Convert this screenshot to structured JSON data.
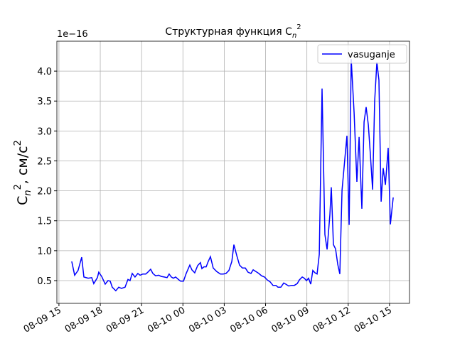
{
  "chart_data": {
    "type": "line",
    "title": {
      "text": "Структурная функция C",
      "sub": "n",
      "sup": "2"
    },
    "y_label": {
      "base": "C",
      "sub": "n",
      "sup": "2",
      "unit": ", см/с",
      "unit_sup": "2"
    },
    "offset_text": "1e−16",
    "grid": true,
    "legend": "upper right",
    "xlim": [
      14.85,
      40.45
    ],
    "ylim": [
      0.12,
      4.5
    ],
    "xticks": [
      {
        "value": 15,
        "label": "08-09 15"
      },
      {
        "value": 18,
        "label": "08-09 18"
      },
      {
        "value": 21,
        "label": "08-09 21"
      },
      {
        "value": 24,
        "label": "08-10 00"
      },
      {
        "value": 27,
        "label": "08-10 03"
      },
      {
        "value": 30,
        "label": "08-10 06"
      },
      {
        "value": 33,
        "label": "08-10 09"
      },
      {
        "value": 36,
        "label": "08-10 12"
      },
      {
        "value": 39,
        "label": "08-10 15"
      }
    ],
    "yticks": [
      0.5,
      {
        "value": 1.0,
        "label": "1.0"
      },
      1.5,
      {
        "value": 2.0,
        "label": "2.0"
      },
      2.5,
      {
        "value": 3.0,
        "label": "3.0"
      },
      3.5,
      {
        "value": 4.0,
        "label": "4.0"
      }
    ],
    "x": [
      15.93,
      16.14,
      16.39,
      16.65,
      16.81,
      17.12,
      17.38,
      17.53,
      17.79,
      17.89,
      18.1,
      18.36,
      18.56,
      18.72,
      18.87,
      19.13,
      19.34,
      19.54,
      19.8,
      20.01,
      20.16,
      20.32,
      20.52,
      20.73,
      20.89,
      21.09,
      21.3,
      21.45,
      21.66,
      21.82,
      22.02,
      22.23,
      22.43,
      22.64,
      22.85,
      23.0,
      23.16,
      23.31,
      23.47,
      23.67,
      23.83,
      24.04,
      24.24,
      24.5,
      24.65,
      24.86,
      25.07,
      25.27,
      25.38,
      25.53,
      25.69,
      25.84,
      26.0,
      26.2,
      26.46,
      26.72,
      26.93,
      27.13,
      27.34,
      27.55,
      27.7,
      27.91,
      28.11,
      28.32,
      28.53,
      28.73,
      28.94,
      29.1,
      29.3,
      29.51,
      29.71,
      29.92,
      30.13,
      30.33,
      30.54,
      30.75,
      30.9,
      31.11,
      31.32,
      31.47,
      31.68,
      31.88,
      32.09,
      32.3,
      32.45,
      32.66,
      32.81,
      32.97,
      33.12,
      33.28,
      33.43,
      33.59,
      33.74,
      33.9,
      34.1,
      34.31,
      34.47,
      34.67,
      34.77,
      34.93,
      35.08,
      35.24,
      35.39,
      35.55,
      35.76,
      35.91,
      36.07,
      36.22,
      36.43,
      36.63,
      36.79,
      36.99,
      37.15,
      37.3,
      37.46,
      37.61,
      37.77,
      37.92,
      38.08,
      38.23,
      38.39,
      38.54,
      38.7,
      38.9,
      39.06,
      39.27
    ],
    "series": [
      {
        "name": "vasuganje",
        "color": "#0000ff",
        "values": [
          0.82,
          0.59,
          0.67,
          0.89,
          0.56,
          0.54,
          0.55,
          0.45,
          0.55,
          0.64,
          0.57,
          0.44,
          0.5,
          0.49,
          0.39,
          0.33,
          0.39,
          0.37,
          0.39,
          0.52,
          0.5,
          0.62,
          0.56,
          0.62,
          0.59,
          0.61,
          0.61,
          0.64,
          0.69,
          0.62,
          0.58,
          0.59,
          0.57,
          0.56,
          0.55,
          0.61,
          0.56,
          0.54,
          0.56,
          0.52,
          0.49,
          0.49,
          0.62,
          0.76,
          0.68,
          0.63,
          0.75,
          0.8,
          0.7,
          0.73,
          0.73,
          0.82,
          0.9,
          0.71,
          0.65,
          0.61,
          0.61,
          0.62,
          0.67,
          0.82,
          1.1,
          0.92,
          0.76,
          0.71,
          0.71,
          0.64,
          0.62,
          0.68,
          0.65,
          0.62,
          0.58,
          0.56,
          0.51,
          0.48,
          0.42,
          0.42,
          0.39,
          0.39,
          0.46,
          0.44,
          0.41,
          0.42,
          0.42,
          0.45,
          0.51,
          0.56,
          0.54,
          0.5,
          0.54,
          0.44,
          0.67,
          0.63,
          0.61,
          0.94,
          3.71,
          1.27,
          1.02,
          1.6,
          2.06,
          1.1,
          1.03,
          0.77,
          0.61,
          2.01,
          2.54,
          2.92,
          1.43,
          4.2,
          3.3,
          2.15,
          2.9,
          1.7,
          3.15,
          3.4,
          3.1,
          2.6,
          2.02,
          3.5,
          4.15,
          3.85,
          1.82,
          2.38,
          2.1,
          2.72,
          1.44,
          1.89
        ]
      }
    ]
  }
}
